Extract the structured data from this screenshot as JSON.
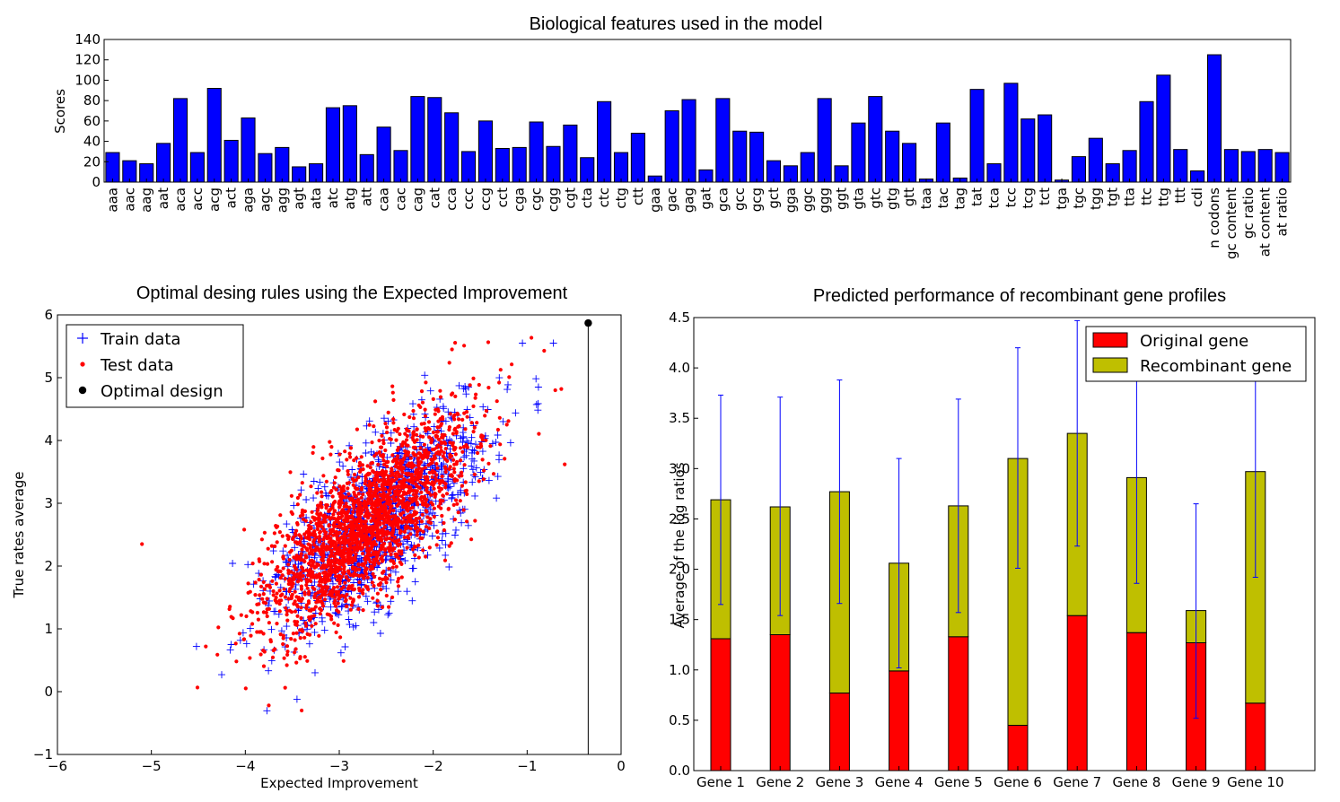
{
  "chart_data": [
    {
      "type": "bar",
      "title": "Biological features used in the model",
      "xlabel": "",
      "ylabel": "Scores",
      "ylim": [
        0,
        140
      ],
      "yticks": [
        "0",
        "20",
        "40",
        "60",
        "80",
        "100",
        "120",
        "140"
      ],
      "color": "#0000ff",
      "categories": [
        "aaa",
        "aac",
        "aag",
        "aat",
        "aca",
        "acc",
        "acg",
        "act",
        "aga",
        "agc",
        "agg",
        "agt",
        "ata",
        "atc",
        "atg",
        "att",
        "caa",
        "cac",
        "cag",
        "cat",
        "cca",
        "ccc",
        "ccg",
        "cct",
        "cga",
        "cgc",
        "cgg",
        "cgt",
        "cta",
        "ctc",
        "ctg",
        "ctt",
        "gaa",
        "gac",
        "gag",
        "gat",
        "gca",
        "gcc",
        "gcg",
        "gct",
        "gga",
        "ggc",
        "ggg",
        "ggt",
        "gta",
        "gtc",
        "gtg",
        "gtt",
        "taa",
        "tac",
        "tag",
        "tat",
        "tca",
        "tcc",
        "tcg",
        "tct",
        "tga",
        "tgc",
        "tgg",
        "tgt",
        "tta",
        "ttc",
        "ttg",
        "ttt",
        "cdi",
        "n  codons",
        "gc  content",
        "gc ratio",
        "at  content",
        "at  ratio"
      ],
      "values": [
        29,
        21,
        18,
        38,
        82,
        29,
        92,
        41,
        63,
        28,
        34,
        15,
        18,
        73,
        75,
        27,
        54,
        31,
        84,
        83,
        68,
        30,
        60,
        33,
        34,
        59,
        35,
        56,
        24,
        79,
        29,
        48,
        6,
        70,
        81,
        12,
        82,
        50,
        49,
        21,
        16,
        29,
        82,
        16,
        58,
        84,
        50,
        38,
        3,
        58,
        4,
        91,
        18,
        97,
        62,
        66,
        2,
        25,
        43,
        18,
        31,
        79,
        105,
        32,
        11,
        125,
        32,
        30,
        32,
        29
      ]
    },
    {
      "type": "scatter",
      "title": "Optimal desing rules using the Expected Improvement",
      "xlabel": "Expected Improvement",
      "ylabel": "True rates average",
      "xlim": [
        -6,
        0
      ],
      "ylim": [
        -1,
        6
      ],
      "xticks": [
        "−6",
        "−5",
        "−4",
        "−3",
        "−2",
        "−1",
        "0"
      ],
      "yticks": [
        "−1",
        "0",
        "1",
        "2",
        "3",
        "4",
        "5",
        "6"
      ],
      "legend": [
        "Train data",
        "Test data",
        "Optimal design"
      ],
      "series": [
        {
          "name": "Train data",
          "marker": "+",
          "color": "#0000ff",
          "center": [
            -2.6,
            2.7
          ],
          "count": 1200,
          "seed": 7,
          "points": [
            [
              -4.52,
              0.72
            ],
            [
              -4.15,
              0.75
            ],
            [
              -0.72,
              5.55
            ],
            [
              -3.45,
              -0.12
            ],
            [
              -1.05,
              5.55
            ],
            [
              -0.88,
              4.85
            ]
          ]
        },
        {
          "name": "Test data",
          "marker": "dot",
          "color": "#ff0000",
          "center": [
            -2.7,
            2.7
          ],
          "count": 2200,
          "seed": 13,
          "points": [
            [
              -5.1,
              2.35
            ],
            [
              -0.6,
              3.62
            ],
            [
              -0.7,
              4.8
            ],
            [
              -3.4,
              -0.3
            ],
            [
              -3.75,
              -0.22
            ],
            [
              -1.8,
              5.45
            ]
          ]
        },
        {
          "name": "Optimal design",
          "marker": "o",
          "color": "#000000",
          "points": [
            [
              -0.35,
              5.87
            ]
          ]
        }
      ],
      "vline_x": -0.35
    },
    {
      "type": "bar",
      "stacked": true,
      "title": "Predicted performance of recombinant gene profiles",
      "xlabel": "",
      "ylabel": "Average of the log ratios",
      "ylim": [
        0,
        4.5
      ],
      "yticks": [
        "0.0",
        "0.5",
        "1.0",
        "1.5",
        "2.0",
        "2.5",
        "3.0",
        "3.5",
        "4.0",
        "4.5"
      ],
      "categories": [
        "Gene 1",
        "Gene 2",
        "Gene 3",
        "Gene 4",
        "Gene 5",
        "Gene 6",
        "Gene 7",
        "Gene 8",
        "Gene 9",
        "Gene 10"
      ],
      "series": [
        {
          "name": "Original gene",
          "color": "#ff0000",
          "values": [
            1.31,
            1.35,
            0.77,
            0.99,
            1.33,
            0.45,
            1.54,
            1.37,
            1.27,
            0.67
          ]
        },
        {
          "name": "Recombinant gene",
          "color": "#bfbf00",
          "values": [
            1.38,
            1.27,
            2.0,
            1.07,
            1.3,
            2.65,
            1.81,
            1.54,
            0.32,
            2.3
          ]
        }
      ],
      "error_low": [
        1.65,
        1.54,
        1.66,
        1.02,
        1.57,
        2.01,
        2.23,
        1.86,
        0.52,
        1.92
      ],
      "error_high": [
        3.73,
        3.71,
        3.88,
        3.1,
        3.69,
        4.2,
        4.47,
        3.98,
        2.65,
        4.03
      ],
      "error_color": "#0000ff",
      "legend": [
        "Original gene",
        "Recombinant gene"
      ]
    }
  ]
}
